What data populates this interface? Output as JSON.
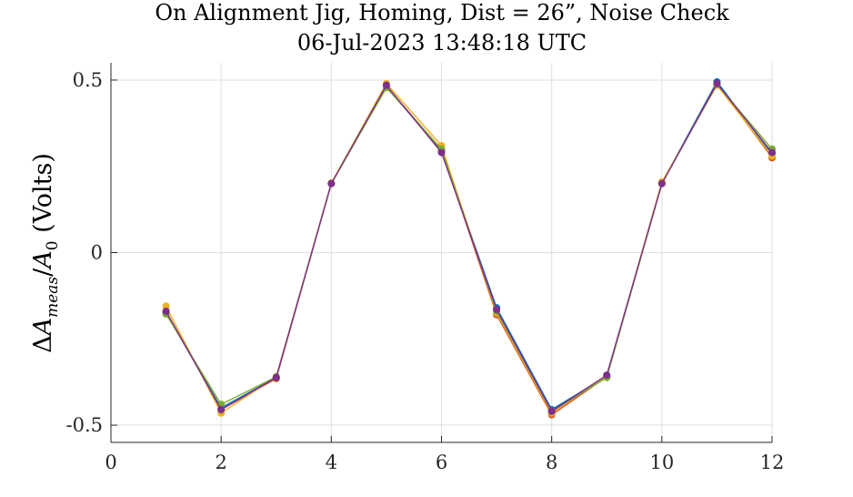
{
  "chart_data": {
    "type": "line",
    "title": "On Alignment Jig, Homing, Dist = 26”, Noise Check",
    "subtitle": "06-Jul-2023 13:48:18 UTC",
    "xlabel": "",
    "ylabel": "ΔA_meas/A_0 (Volts)",
    "xlim": [
      0,
      12
    ],
    "ylim": [
      -0.55,
      0.55
    ],
    "xticks": [
      0,
      2,
      4,
      6,
      8,
      10,
      12
    ],
    "xtick_labels": [
      "0",
      "2",
      "4",
      "6",
      "8",
      "10",
      "12"
    ],
    "yticks": [
      0.5,
      0,
      -0.5
    ],
    "ytick_labels": [
      "0.5",
      "0",
      "-0.5"
    ],
    "grid": true,
    "x": [
      1,
      2,
      3,
      4,
      5,
      6,
      7,
      8,
      9,
      10,
      11,
      12
    ],
    "series": [
      {
        "color": "#0072BD",
        "values": [
          -0.175,
          -0.45,
          -0.362,
          0.2,
          0.48,
          0.295,
          -0.16,
          -0.455,
          -0.358,
          0.202,
          0.495,
          0.285
        ]
      },
      {
        "color": "#D95319",
        "values": [
          -0.17,
          -0.455,
          -0.365,
          0.2,
          0.482,
          0.298,
          -0.18,
          -0.47,
          -0.36,
          0.2,
          0.49,
          0.275
        ]
      },
      {
        "color": "#EDB120",
        "values": [
          -0.155,
          -0.465,
          -0.36,
          0.202,
          0.49,
          0.31,
          -0.175,
          -0.465,
          -0.357,
          0.205,
          0.485,
          0.28
        ]
      },
      {
        "color": "#77AC30",
        "values": [
          -0.178,
          -0.44,
          -0.36,
          0.2,
          0.478,
          0.3,
          -0.17,
          -0.46,
          -0.362,
          0.2,
          0.488,
          0.3
        ]
      },
      {
        "color": "#7E2F8E",
        "values": [
          -0.17,
          -0.455,
          -0.362,
          0.2,
          0.485,
          0.29,
          -0.165,
          -0.46,
          -0.355,
          0.2,
          0.49,
          0.29
        ]
      }
    ]
  }
}
